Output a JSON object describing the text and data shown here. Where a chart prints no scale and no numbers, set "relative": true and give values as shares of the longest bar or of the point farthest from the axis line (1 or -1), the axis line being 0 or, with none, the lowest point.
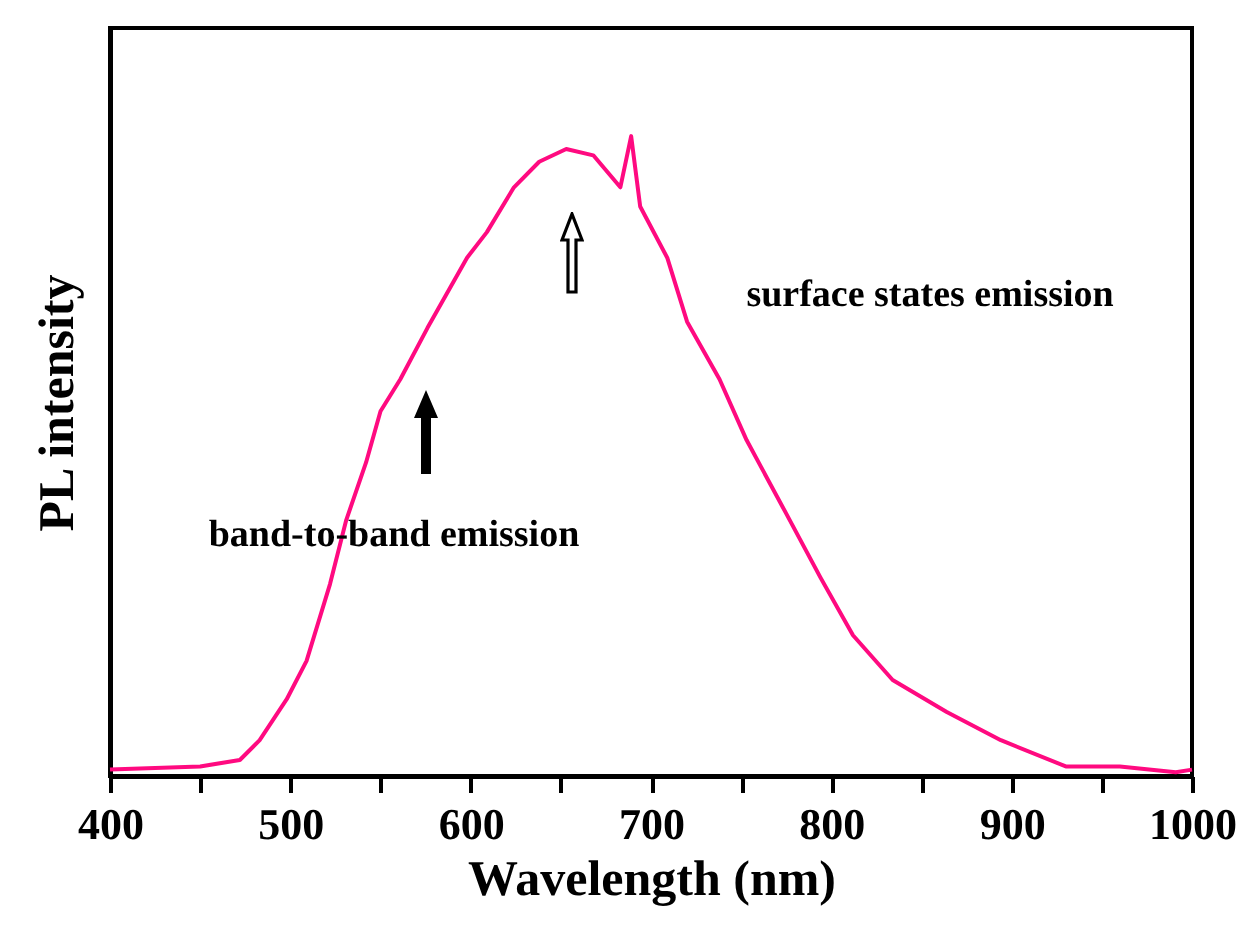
{
  "chart_data": {
    "type": "line",
    "relative": true,
    "xlabel": "Wavelength (nm)",
    "ylabel": "PL intensity",
    "x": [
      400,
      450,
      472,
      483,
      498,
      509,
      522,
      531,
      542,
      550,
      561,
      576,
      598,
      609,
      624,
      638,
      653,
      668,
      683,
      689,
      694,
      709,
      720,
      738,
      753,
      775,
      794,
      812,
      834,
      864,
      894,
      930,
      960,
      991,
      1000
    ],
    "series": [
      {
        "color": "#ff0a80",
        "values": [
          0.01,
          0.015,
          0.025,
          0.056,
          0.12,
          0.18,
          0.3,
          0.4,
          0.49,
          0.57,
          0.62,
          0.7,
          0.81,
          0.85,
          0.92,
          0.96,
          0.98,
          0.97,
          0.92,
          1.0,
          0.89,
          0.81,
          0.71,
          0.62,
          0.525,
          0.41,
          0.31,
          0.22,
          0.15,
          0.1,
          0.056,
          0.015,
          0.015,
          0.006,
          0.01
        ]
      }
    ],
    "xlim": [
      400,
      1000
    ],
    "xticks": [
      400,
      {
        "value": 450,
        "label": null
      },
      500,
      {
        "value": 550,
        "label": null
      },
      600,
      {
        "value": 650,
        "label": null
      },
      700,
      {
        "value": 750,
        "label": null
      },
      800,
      {
        "value": 850,
        "label": null
      },
      900,
      {
        "value": 950,
        "label": null
      },
      1000
    ],
    "annotations": [
      "band-to-band emission",
      "surface states emission"
    ],
    "grid": false,
    "marker": "none",
    "line_style": "solid"
  }
}
